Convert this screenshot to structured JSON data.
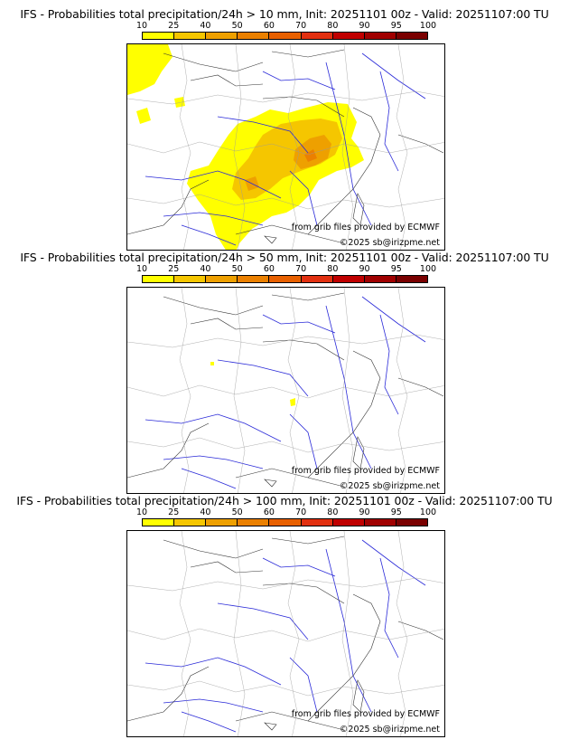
{
  "colorbar": {
    "ticks": [
      "10",
      "25",
      "40",
      "50",
      "60",
      "70",
      "80",
      "90",
      "95",
      "100"
    ],
    "colors": [
      "#ffff00",
      "#f5c600",
      "#eea000",
      "#eb8000",
      "#e86000",
      "#e23010",
      "#c00000",
      "#a00000",
      "#7a0000"
    ]
  },
  "panels": [
    {
      "title": "IFS - Probabilities total precipitation/24h > 10 mm, Init: 20251101 00z - Valid: 20251107:00 TU",
      "threshold_mm": 10,
      "credit_line1": "from grib files provided by ECMWF",
      "credit_line2": "©2025 sb@irizpme.net"
    },
    {
      "title": "IFS - Probabilities total precipitation/24h > 50 mm, Init: 20251101 00z - Valid: 20251107:00 TU",
      "threshold_mm": 50,
      "credit_line1": "from grib files provided by ECMWF",
      "credit_line2": "©2025 sb@irizpme.net"
    },
    {
      "title": "IFS - Probabilities total precipitation/24h > 100 mm, Init: 20251101 00z - Valid: 20251107:00 TU",
      "threshold_mm": 100,
      "credit_line1": "from grib files provided by ECMWF",
      "credit_line2": "©2025 sb@irizpme.net"
    }
  ]
}
